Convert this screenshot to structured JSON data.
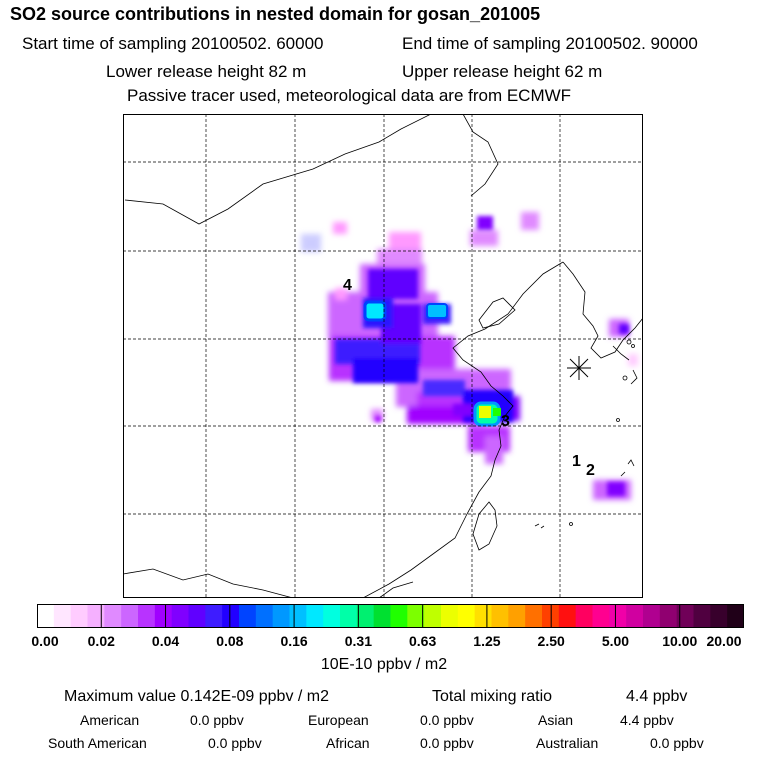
{
  "header": {
    "title": "SO2 source contributions in nested domain for gosan_201005",
    "start_time": "Start time of sampling 20100502. 60000",
    "end_time": "End time of sampling 20100502. 90000",
    "lower_height": "Lower release height   82 m",
    "upper_height": "Upper release height   62 m",
    "note": "Passive tracer used, meteorological data are from ECMWF"
  },
  "map": {
    "markers": [
      {
        "label": "4"
      },
      {
        "label": "3"
      },
      {
        "label": "1"
      },
      {
        "label": "2"
      }
    ],
    "receptor_symbol": "receptor-star-icon"
  },
  "colorbar": {
    "tick_labels": [
      "0.00",
      "0.02",
      "0.04",
      "0.08",
      "0.16",
      "0.31",
      "0.63",
      "1.25",
      "2.50",
      "5.00",
      "10.00",
      "20.00"
    ],
    "colors": [
      "#ffffff",
      "#ffe6ff",
      "#ffccff",
      "#f5b0ff",
      "#e08aff",
      "#cc66ff",
      "#b833ff",
      "#a000ff",
      "#8000ff",
      "#6000ff",
      "#3e1cff",
      "#2200ff",
      "#0044ff",
      "#0070ff",
      "#0098ff",
      "#00c0ff",
      "#00e8ff",
      "#00ffe0",
      "#00ffa8",
      "#00f070",
      "#00e030",
      "#20ff00",
      "#7cff00",
      "#bfff00",
      "#ecff00",
      "#ffff00",
      "#ffe000",
      "#ffc000",
      "#ffa000",
      "#ff7000",
      "#ff4000",
      "#ff1010",
      "#ff0060",
      "#ff0090",
      "#f000a8",
      "#d000a0",
      "#b00090",
      "#900070",
      "#700058",
      "#500040",
      "#38002c",
      "#200018"
    ],
    "unit": "10E-10 ppbv / m2"
  },
  "summary": {
    "maximum": "Maximum value  0.142E-09 ppbv / m2",
    "total": "Total mixing ratio",
    "total_value": "4.4 ppbv",
    "regions": [
      {
        "name": "American",
        "value": "0.0 ppbv"
      },
      {
        "name": "European",
        "value": "0.0 ppbv"
      },
      {
        "name": "Asian",
        "value": "4.4 ppbv"
      },
      {
        "name": "South American",
        "value": "0.0 ppbv"
      },
      {
        "name": "African",
        "value": "0.0 ppbv"
      },
      {
        "name": "Australian",
        "value": "0.0 ppbv"
      }
    ]
  }
}
